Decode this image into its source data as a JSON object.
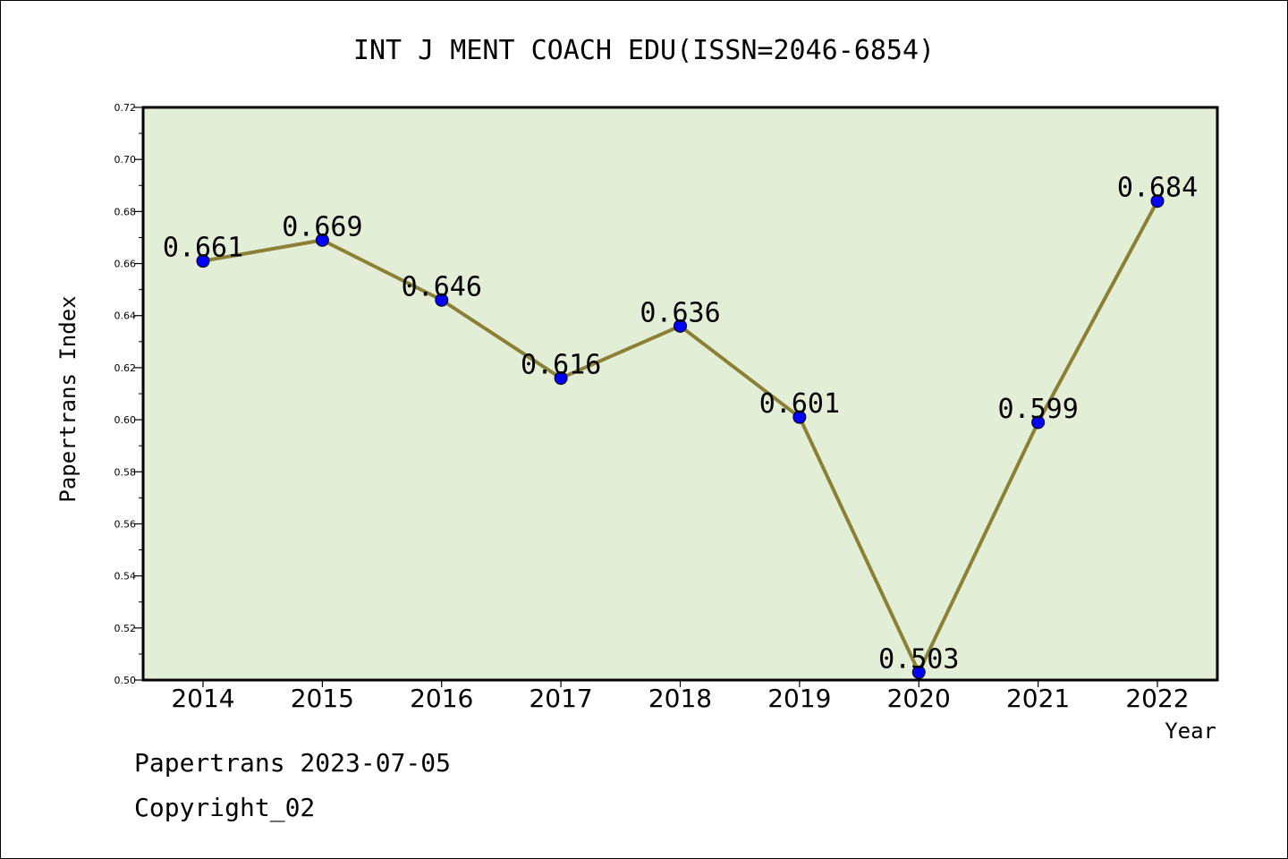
{
  "chart_data": {
    "type": "line",
    "title": "INT J MENT COACH EDU(ISSN=2046-6854)",
    "xlabel": "Year",
    "ylabel": "Papertrans Index",
    "categories": [
      "2014",
      "2015",
      "2016",
      "2017",
      "2018",
      "2019",
      "2020",
      "2021",
      "2022"
    ],
    "series": [
      {
        "values": [
          0.661,
          0.669,
          0.646,
          0.616,
          0.636,
          0.601,
          0.503,
          0.599,
          0.684
        ],
        "labels": [
          "0.661",
          "0.669",
          "0.646",
          "0.616",
          "0.636",
          "0.601",
          "0.503",
          "0.599",
          "0.684"
        ]
      }
    ],
    "ylim": [
      0.5,
      0.72
    ],
    "yticks": [
      "0.50",
      "0.52",
      "0.54",
      "0.56",
      "0.58",
      "0.60",
      "0.62",
      "0.64",
      "0.66",
      "0.68",
      "0.70",
      "0.72"
    ],
    "grid": false,
    "legend": "none",
    "colors": {
      "plot_background": "#e2efd6",
      "line": "#8b8035",
      "marker": "#0000ff"
    }
  },
  "footer": {
    "date_line": "Papertrans 2023-07-05",
    "copyright": "Copyright_02"
  }
}
